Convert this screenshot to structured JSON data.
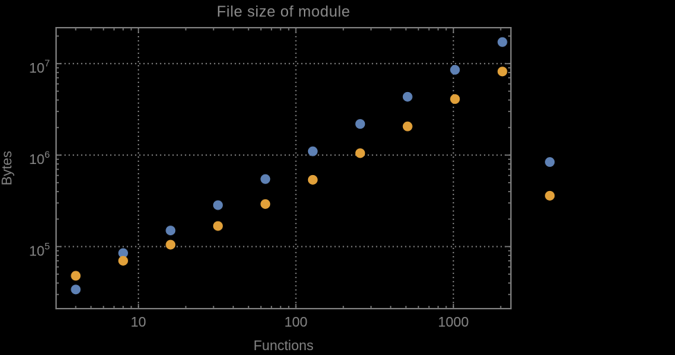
{
  "chart_data": {
    "type": "scatter",
    "title": "File size of module",
    "xlabel": "Functions",
    "ylabel": "Bytes",
    "x_scale": "log",
    "y_scale": "log",
    "xlim": [
      3.0,
      2320
    ],
    "ylim": [
      21000,
      24700000
    ],
    "grid": "major-only-dotted",
    "legend": "none",
    "frame": true,
    "x": [
      4,
      8,
      16,
      32,
      64,
      128,
      256,
      512,
      1024,
      2048,
      4096
    ],
    "series": [
      {
        "name": "series-1-blue",
        "color": "#5E81B5",
        "values": [
          34000,
          85000,
          150000,
          284000,
          547000,
          1100000,
          2190000,
          4340000,
          8550000,
          17200000,
          840000
        ]
      },
      {
        "name": "series-2-orange",
        "color": "#E2A13A",
        "values": [
          48000,
          70000,
          105000,
          168000,
          292000,
          537000,
          1050000,
          2060000,
          4100000,
          8200000,
          360000
        ]
      }
    ],
    "x_major_ticks": [
      10,
      100,
      1000
    ],
    "x_major_tick_labels": [
      "10",
      "100",
      "1000"
    ],
    "y_major_ticks": [
      100000,
      1000000,
      10000000
    ],
    "y_major_tick_labels": [
      {
        "base": "10",
        "exp": "5"
      },
      {
        "base": "10",
        "exp": "6"
      },
      {
        "base": "10",
        "exp": "7"
      }
    ],
    "style": {
      "background": "#000000",
      "frame_color": "#7b7b7b",
      "grid_color": "#6e6e6e",
      "tick_color": "#7b7b7b",
      "tick_label_color": "#858585",
      "point_radius": 7
    }
  }
}
